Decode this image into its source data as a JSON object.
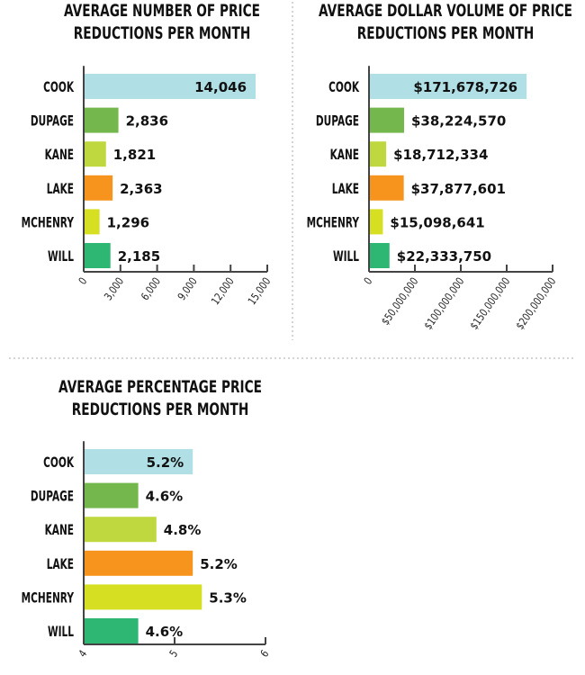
{
  "colors": {
    "COOK": "#b0e0e6",
    "DUPAGE": "#74b84d",
    "KANE": "#c0d83f",
    "LAKE": "#f7941e",
    "MCHENRY": "#d7df23",
    "WILL": "#2eb673",
    "axis": "#444444",
    "divider": "#aaaaaa"
  },
  "chart_data": [
    {
      "type": "bar",
      "orientation": "horizontal",
      "title": [
        "AVERAGE NUMBER OF PRICE",
        "REDUCTIONS PER MONTH"
      ],
      "categories": [
        "COOK",
        "DUPAGE",
        "KANE",
        "LAKE",
        "MCHENRY",
        "WILL"
      ],
      "values": [
        14046,
        2836,
        1821,
        2363,
        1296,
        2185
      ],
      "value_labels": [
        "14,046",
        "2,836",
        "1,821",
        "2,363",
        "1,296",
        "2,185"
      ],
      "xlim": [
        0,
        15000
      ],
      "ticks": [
        0,
        3000,
        6000,
        9000,
        12000,
        15000
      ],
      "tick_labels": [
        "0",
        "3,000",
        "6,000",
        "9,000",
        "12,000",
        "15,000"
      ],
      "grid": false
    },
    {
      "type": "bar",
      "orientation": "horizontal",
      "title": [
        "AVERAGE DOLLAR VOLUME OF PRICE",
        "REDUCTIONS PER MONTH"
      ],
      "categories": [
        "COOK",
        "DUPAGE",
        "KANE",
        "LAKE",
        "MCHENRY",
        "WILL"
      ],
      "values": [
        171678726,
        38224570,
        18712334,
        37877601,
        15098641,
        22333750
      ],
      "value_labels": [
        "$171,678,726",
        "$38,224,570",
        "$18,712,334",
        "$37,877,601",
        "$15,098,641",
        "$22,333,750"
      ],
      "xlim": [
        0,
        200000000
      ],
      "ticks": [
        0,
        50000000,
        100000000,
        150000000,
        200000000
      ],
      "tick_labels": [
        "0",
        "$50,000,000",
        "$100,000,000",
        "$150,000,000",
        "$200,000,000"
      ],
      "grid": false
    },
    {
      "type": "bar",
      "orientation": "horizontal",
      "title": [
        "AVERAGE PERCENTAGE PRICE",
        "REDUCTIONS PER MONTH"
      ],
      "categories": [
        "COOK",
        "DUPAGE",
        "KANE",
        "LAKE",
        "MCHENRY",
        "WILL"
      ],
      "values": [
        5.2,
        4.6,
        4.8,
        5.2,
        5.3,
        4.6
      ],
      "value_labels": [
        "5.2%",
        "4.6%",
        "4.8%",
        "5.2%",
        "5.3%",
        "4.6%"
      ],
      "xlim": [
        4,
        6
      ],
      "ticks": [
        4,
        5,
        6
      ],
      "tick_labels": [
        "4",
        "5",
        "6"
      ],
      "grid": false
    }
  ]
}
